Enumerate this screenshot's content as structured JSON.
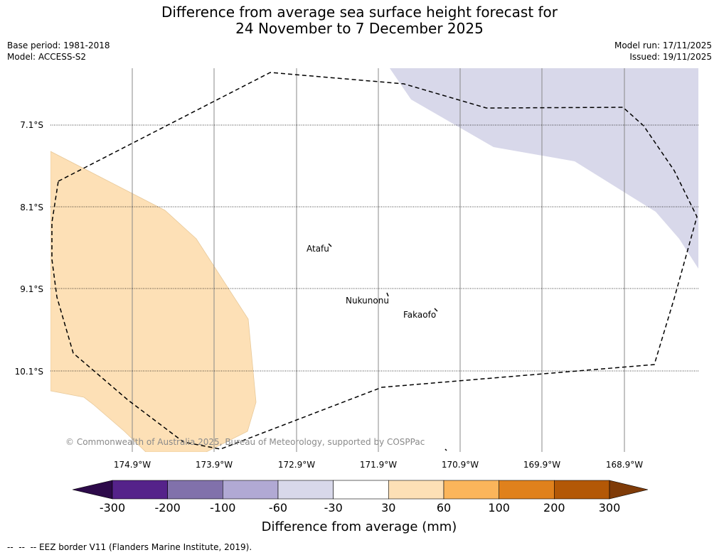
{
  "title_line1": "Difference from average sea surface height forecast for",
  "title_line2": "24 November to 7 December 2025",
  "base_period": "Base period: 1981-2018",
  "model": "Model: ACCESS-S2",
  "model_run": "Model run: 17/11/2025",
  "issued": "Issued: 19/11/2025",
  "latitudes": [
    "7.1°S",
    "8.1°S",
    "9.1°S",
    "10.1°S"
  ],
  "longitudes": [
    "174.9°W",
    "173.9°W",
    "172.9°W",
    "171.9°W",
    "170.9°W",
    "169.9°W",
    "168.9°W"
  ],
  "places": [
    {
      "name": "Atafu",
      "lon": -172.5,
      "lat": -8.55
    },
    {
      "name": "Nukunonu",
      "lon": -171.85,
      "lat": -9.17
    },
    {
      "name": "Fakaofo",
      "lon": -171.2,
      "lat": -9.37
    }
  ],
  "copyright": "© Commonwealth of Australia 2025, Bureau of Meteorology, supported by COSPPac",
  "colorbar": {
    "label": "Difference from average (mm)",
    "ticks": [
      "-300",
      "-200",
      "-100",
      "-60",
      "-30",
      "30",
      "60",
      "100",
      "200",
      "300"
    ],
    "colors": [
      "#2d0a4a",
      "#55228a",
      "#8171ab",
      "#b1a9d4",
      "#d8d8ea",
      "#ffffff",
      "#fde0b6",
      "#fbb55b",
      "#e0811c",
      "#b35806",
      "#7f3b08"
    ]
  },
  "anomaly_regions": [
    {
      "category": "30 to 60",
      "color": "#fde0b6"
    },
    {
      "category": "-60 to -30",
      "color": "#d8d8ea"
    }
  ],
  "footer": "--  --  -- EEZ border V11 (Flanders Marine Institute, 2019)."
}
